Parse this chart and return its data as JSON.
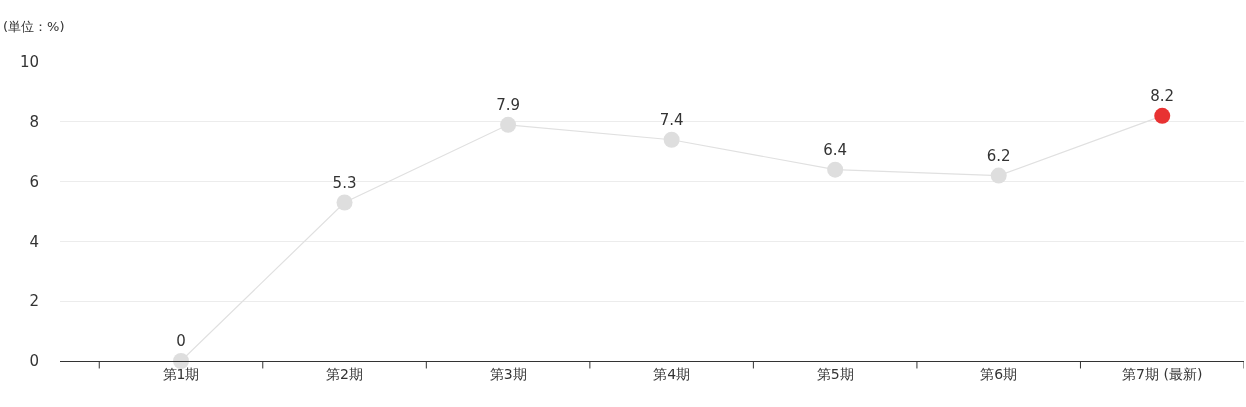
{
  "chart_data": {
    "type": "line",
    "ylabel": "(単位：%)",
    "categories": [
      "第1期",
      "第2期",
      "第3期",
      "第4期",
      "第5期",
      "第6期",
      "第7期 (最新)"
    ],
    "series": [
      {
        "color": "#e0e0e0",
        "colors": [
          "#dedede",
          "#dedede",
          "#dedede",
          "#dedede",
          "#dedede",
          "#dedede",
          "#e83232"
        ],
        "values": [
          0,
          5.3,
          7.9,
          7.4,
          6.4,
          6.2,
          8.2
        ]
      }
    ],
    "ylim": [
      0,
      10
    ],
    "yticks": [
      0,
      2,
      4,
      6,
      8,
      10
    ],
    "grid": "y",
    "marker": "circle",
    "line_style": "solid",
    "data_labels": true
  }
}
